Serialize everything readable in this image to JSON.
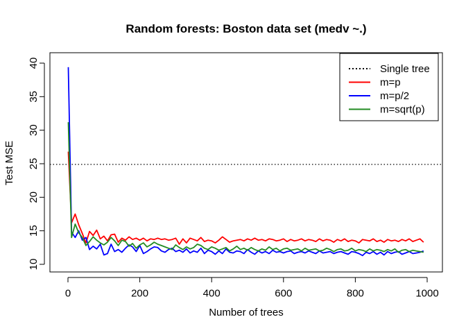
{
  "chart_data": {
    "type": "line",
    "title": "Random forests: Boston data set (medv ~.)",
    "xlabel": "Number of trees",
    "ylabel": "Test MSE",
    "xlim": [
      0,
      1000
    ],
    "ylim": [
      10,
      40
    ],
    "xticks": [
      0,
      200,
      400,
      600,
      800,
      1000
    ],
    "yticks": [
      10,
      15,
      20,
      25,
      30,
      35,
      40
    ],
    "reference_line": {
      "name": "Single tree",
      "y": 24.9,
      "color": "#000000",
      "style": "dotted"
    },
    "legend": {
      "position": "top-right",
      "entries": [
        {
          "label": "Single tree",
          "color": "#000000",
          "style": "dotted"
        },
        {
          "label": "m=p",
          "color": "#ff0000",
          "style": "solid"
        },
        {
          "label": "m=p/2",
          "color": "#0000ff",
          "style": "solid"
        },
        {
          "label": "m=sqrt(p)",
          "color": "#228b22",
          "style": "solid"
        }
      ]
    },
    "x": [
      1,
      10,
      20,
      30,
      40,
      50,
      60,
      70,
      80,
      90,
      100,
      110,
      120,
      130,
      140,
      150,
      160,
      170,
      180,
      190,
      200,
      210,
      220,
      230,
      240,
      250,
      260,
      270,
      280,
      290,
      300,
      310,
      320,
      330,
      340,
      350,
      360,
      370,
      380,
      390,
      400,
      410,
      420,
      430,
      440,
      450,
      460,
      470,
      480,
      490,
      500,
      510,
      520,
      530,
      540,
      550,
      560,
      570,
      580,
      590,
      600,
      610,
      620,
      630,
      640,
      650,
      660,
      670,
      680,
      690,
      700,
      710,
      720,
      730,
      740,
      750,
      760,
      770,
      780,
      790,
      800,
      810,
      820,
      830,
      840,
      850,
      860,
      870,
      880,
      890,
      900,
      910,
      920,
      930,
      940,
      950,
      960,
      970,
      980,
      990
    ],
    "series": [
      {
        "name": "m=p",
        "color": "#ff0000",
        "values": [
          26.8,
          16.2,
          17.5,
          15.9,
          14.6,
          13.2,
          14.9,
          14.3,
          15.1,
          13.8,
          14.2,
          13.5,
          14.4,
          14.5,
          13.3,
          13.9,
          13.6,
          14.1,
          13.7,
          13.9,
          13.6,
          13.9,
          13.5,
          13.8,
          13.7,
          13.9,
          13.7,
          13.8,
          13.6,
          13.7,
          13.9,
          13.0,
          13.8,
          13.2,
          13.9,
          13.7,
          13.5,
          14.0,
          13.4,
          13.6,
          13.5,
          13.2,
          13.6,
          14.1,
          13.7,
          13.3,
          13.5,
          13.6,
          13.7,
          13.5,
          13.8,
          13.6,
          13.9,
          13.6,
          13.7,
          13.5,
          13.8,
          13.7,
          13.5,
          13.6,
          13.8,
          13.4,
          13.7,
          13.5,
          13.6,
          13.8,
          13.5,
          13.7,
          13.6,
          13.4,
          13.8,
          13.5,
          13.7,
          13.6,
          13.3,
          13.7,
          13.5,
          13.8,
          13.4,
          13.6,
          13.5,
          13.2,
          13.7,
          13.6,
          13.5,
          13.8,
          13.4,
          13.6,
          13.3,
          13.7,
          13.5,
          13.6,
          13.4,
          13.7,
          13.5,
          13.8,
          13.4,
          13.6,
          13.8,
          13.3
        ]
      },
      {
        "name": "m=p/2",
        "color": "#0000ff",
        "values": [
          39.4,
          14.8,
          14.0,
          15.0,
          13.6,
          14.0,
          12.2,
          12.7,
          12.3,
          13.0,
          11.4,
          11.6,
          13.0,
          11.9,
          12.2,
          11.8,
          12.4,
          12.9,
          12.6,
          11.9,
          12.8,
          11.6,
          11.9,
          12.3,
          12.6,
          12.5,
          12.0,
          11.8,
          12.2,
          12.4,
          11.9,
          12.1,
          11.8,
          12.3,
          11.7,
          12.0,
          11.8,
          12.4,
          11.6,
          12.1,
          11.9,
          11.5,
          12.0,
          11.6,
          12.3,
          11.8,
          11.7,
          12.0,
          11.9,
          11.6,
          12.2,
          11.8,
          11.5,
          12.0,
          11.7,
          11.9,
          11.6,
          12.1,
          11.8,
          11.9,
          11.7,
          11.9,
          12.0,
          11.6,
          11.8,
          11.9,
          11.7,
          12.0,
          11.8,
          11.6,
          12.0,
          11.7,
          11.8,
          11.9,
          11.6,
          11.8,
          11.9,
          11.7,
          11.5,
          11.9,
          11.8,
          11.6,
          11.3,
          11.8,
          11.6,
          11.9,
          11.5,
          11.8,
          11.4,
          11.9,
          11.6,
          11.8,
          11.9,
          11.5,
          11.7,
          11.9,
          11.6,
          11.7,
          11.8,
          12.0
        ]
      },
      {
        "name": "m=sqrt(p)",
        "color": "#228b22",
        "values": [
          31.2,
          14.0,
          16.0,
          14.7,
          14.0,
          12.8,
          13.4,
          14.1,
          13.6,
          13.2,
          12.9,
          13.3,
          14.0,
          13.5,
          12.8,
          13.6,
          13.4,
          12.7,
          13.1,
          12.4,
          12.9,
          13.2,
          12.6,
          12.9,
          13.3,
          13.0,
          12.8,
          12.6,
          12.4,
          12.2,
          12.9,
          12.5,
          12.2,
          12.6,
          12.3,
          12.5,
          13.0,
          12.8,
          12.4,
          12.2,
          12.6,
          12.4,
          12.1,
          12.3,
          12.5,
          12.0,
          12.3,
          12.7,
          12.2,
          12.4,
          12.1,
          12.5,
          12.2,
          12.0,
          12.3,
          12.1,
          12.6,
          12.2,
          12.4,
          12.0,
          12.3,
          12.4,
          12.1,
          12.2,
          12.3,
          12.0,
          12.4,
          12.1,
          12.2,
          12.3,
          12.0,
          12.1,
          12.4,
          12.2,
          11.9,
          12.2,
          12.3,
          12.0,
          12.1,
          12.4,
          12.0,
          12.2,
          12.1,
          11.9,
          12.3,
          12.0,
          12.2,
          12.1,
          11.9,
          12.2,
          12.0,
          12.3,
          11.8,
          12.1,
          12.2,
          11.9,
          12.1,
          12.0,
          11.9,
          11.8
        ]
      }
    ]
  }
}
